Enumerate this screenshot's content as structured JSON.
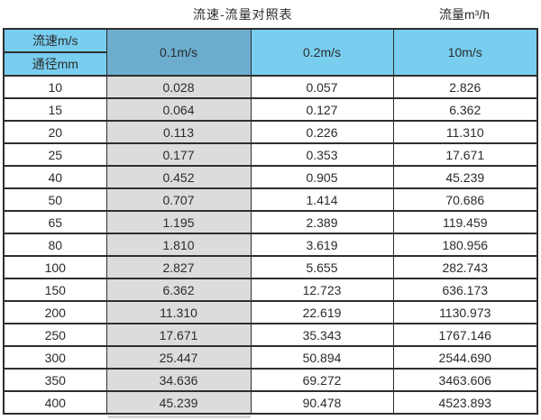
{
  "titles": {
    "main": "流速-流量对照表",
    "right": "流量m³/h"
  },
  "table": {
    "corner_top": "流速m/s",
    "corner_bottom": "通径mm",
    "columns": [
      "0.1m/s",
      "0.2m/s",
      "10m/s"
    ],
    "rows": [
      [
        "10",
        "0.028",
        "0.057",
        "2.826"
      ],
      [
        "15",
        "0.064",
        "0.127",
        "6.362"
      ],
      [
        "20",
        "0.113",
        "0.226",
        "11.310"
      ],
      [
        "25",
        "0.177",
        "0.353",
        "17.671"
      ],
      [
        "40",
        "0.452",
        "0.905",
        "45.239"
      ],
      [
        "50",
        "0.707",
        "1.414",
        "70.686"
      ],
      [
        "65",
        "1.195",
        "2.389",
        "119.459"
      ],
      [
        "80",
        "1.810",
        "3.619",
        "180.956"
      ],
      [
        "100",
        "2.827",
        "5.655",
        "282.743"
      ],
      [
        "150",
        "6.362",
        "12.723",
        "636.173"
      ],
      [
        "200",
        "11.310",
        "22.619",
        "1130.973"
      ],
      [
        "250",
        "17.671",
        "35.343",
        "1767.146"
      ],
      [
        "300",
        "25.447",
        "50.894",
        "2544.690"
      ],
      [
        "350",
        "34.636",
        "69.272",
        "3463.606"
      ],
      [
        "400",
        "45.239",
        "90.478",
        "4523.893"
      ]
    ]
  },
  "colors": {
    "header_blue": "#79CEF0",
    "header_dark_blue": "#6CADCE",
    "col_gray": "#DCDCDC",
    "border_dark": "#2E2E2E",
    "text": "#2B2B2B"
  },
  "chart_data": {
    "type": "table",
    "title": "流速-流量对照表",
    "unit_label": "流量m³/h",
    "row_header": "通径mm",
    "column_header": "流速m/s",
    "velocity_columns_m_per_s": [
      0.1,
      0.2,
      10
    ],
    "diameters_mm": [
      10,
      15,
      20,
      25,
      40,
      50,
      65,
      80,
      100,
      150,
      200,
      250,
      300,
      350,
      400
    ],
    "flow_rate_m3_per_h": {
      "v0.1": [
        0.028,
        0.064,
        0.113,
        0.177,
        0.452,
        0.707,
        1.195,
        1.81,
        2.827,
        6.362,
        11.31,
        17.671,
        25.447,
        34.636,
        45.239
      ],
      "v0.2": [
        0.057,
        0.127,
        0.226,
        0.353,
        0.905,
        1.414,
        2.389,
        3.619,
        5.655,
        12.723,
        22.619,
        35.343,
        50.894,
        69.272,
        90.478
      ],
      "v10": [
        2.826,
        6.362,
        11.31,
        17.671,
        45.239,
        70.686,
        119.459,
        180.956,
        282.743,
        636.173,
        1130.973,
        1767.146,
        2544.69,
        3463.606,
        4523.893
      ]
    }
  }
}
